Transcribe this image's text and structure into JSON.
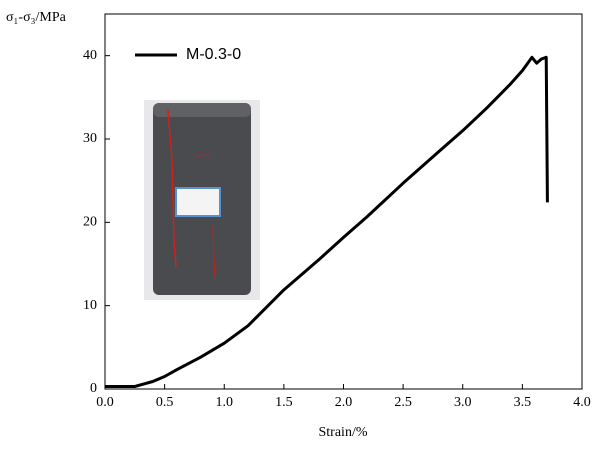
{
  "chart_data": {
    "type": "line",
    "y_label": "σ₁-σ₃/MPa",
    "x_label": "Strain/%",
    "xlim": [
      0,
      4
    ],
    "ylim": [
      0,
      45
    ],
    "xticks": [
      {
        "value": 0,
        "label": "0.0"
      },
      0.5,
      {
        "value": 1,
        "label": "1.0"
      },
      1.5,
      {
        "value": 2,
        "label": "2.0"
      },
      2.5,
      {
        "value": 3,
        "label": "3.0"
      },
      3.5,
      {
        "value": 4,
        "label": "4.0"
      }
    ],
    "yticks": [
      0,
      10,
      20,
      30,
      40
    ],
    "legend": "upper left",
    "series": [
      {
        "name": "M-0.3-0",
        "color": "#000000",
        "x": [
          0,
          0.25,
          0.3,
          0.4,
          0.5,
          0.6,
          0.8,
          1.0,
          1.2,
          1.5,
          1.8,
          2.0,
          2.2,
          2.5,
          2.8,
          3.0,
          3.2,
          3.4,
          3.5,
          3.58,
          3.62,
          3.66,
          3.7,
          3.71
        ],
        "values": [
          0.3,
          0.3,
          0.5,
          0.9,
          1.5,
          2.3,
          3.8,
          5.5,
          7.6,
          11.9,
          15.6,
          18.2,
          20.7,
          24.7,
          28.5,
          31,
          33.7,
          36.6,
          38.2,
          39.8,
          39.1,
          39.6,
          39.8,
          22.4
        ]
      }
    ]
  }
}
